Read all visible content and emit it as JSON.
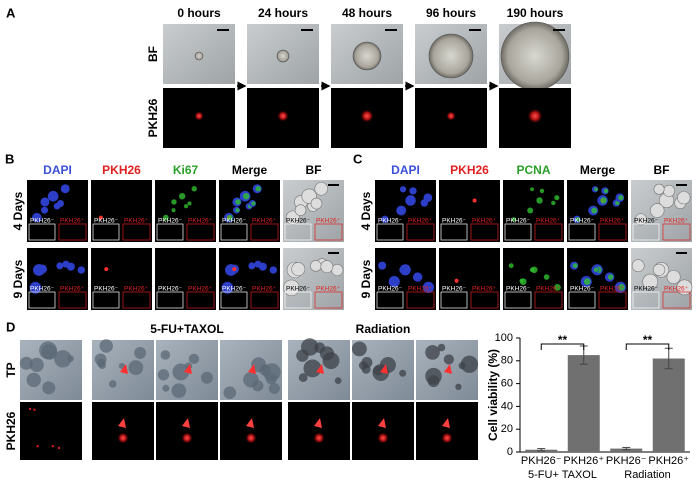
{
  "panels": {
    "A": {
      "label": "A",
      "columns": [
        "0 hours",
        "24 hours",
        "48 hours",
        "96 hours",
        "190 hours"
      ],
      "rows": [
        "BF",
        "PKH26"
      ]
    },
    "B": {
      "label": "B",
      "columns": [
        "DAPI",
        "PKH26",
        "Ki67",
        "Merge",
        "BF"
      ],
      "column_colors": [
        "#3b4fd8",
        "#e02020",
        "#2aa02a",
        "#000000",
        "#000000"
      ],
      "rows": [
        "4 Days",
        "9 Days"
      ],
      "insets": [
        "PKH26⁻",
        "PKH26⁺"
      ]
    },
    "C": {
      "label": "C",
      "columns": [
        "DAPI",
        "PKH26",
        "PCNA",
        "Merge",
        "BF"
      ],
      "column_colors": [
        "#3b4fd8",
        "#e02020",
        "#2aa02a",
        "#000000",
        "#000000"
      ],
      "rows": [
        "4 Days",
        "9 Days"
      ],
      "insets": [
        "PKH26⁻",
        "PKH26⁺"
      ]
    },
    "D": {
      "label": "D",
      "groups": [
        "5-FU+TAXOL",
        "Radiation"
      ],
      "rows": [
        "TP",
        "PKH26"
      ]
    }
  },
  "chart_data": {
    "type": "bar",
    "y_label": "Cell viability (%)",
    "categories": [
      "PKH26⁻",
      "PKH26⁺",
      "PKH26⁻",
      "PKH26⁺"
    ],
    "groups": [
      "5-FU+ TAXOL",
      "Radiation"
    ],
    "values": [
      2,
      85,
      3,
      82
    ],
    "errors": [
      1,
      8,
      1,
      9
    ],
    "significance": "**",
    "color": "#707070",
    "ylim": [
      0,
      100
    ],
    "yticks": [
      0,
      20,
      40,
      60,
      80,
      100
    ]
  }
}
